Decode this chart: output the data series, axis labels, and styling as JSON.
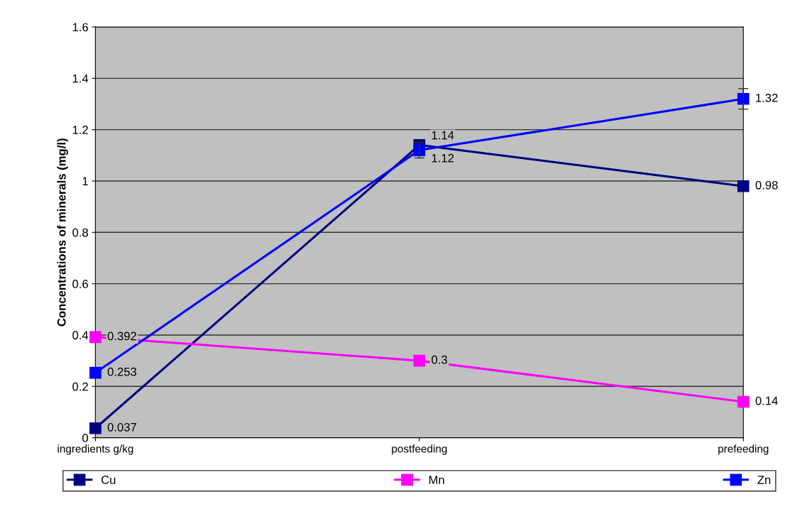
{
  "chart_data": {
    "type": "line",
    "ylabel": "Concentrations of minerals (mg/l)",
    "categories": [
      "ingredients g/kg",
      "postfeeding",
      "prefeeding"
    ],
    "series": [
      {
        "name": "Cu",
        "color": "#000080",
        "values": [
          0.037,
          1.14,
          0.98
        ]
      },
      {
        "name": "Mn",
        "color": "#ff00ff",
        "values": [
          0.392,
          0.3,
          0.14
        ]
      },
      {
        "name": "Zn",
        "color": "#0000ff",
        "values": [
          0.253,
          1.12,
          1.32
        ],
        "errors": [
          null,
          0.03,
          0.04
        ]
      }
    ],
    "ylim": [
      0,
      1.6
    ],
    "yticks": [
      0,
      0.2,
      0.4,
      0.6,
      0.8,
      1,
      1.2,
      1.4,
      1.6
    ],
    "grid": "y",
    "legend": "bottom",
    "marker": "square",
    "line_style": "solid",
    "data_labels": true
  }
}
